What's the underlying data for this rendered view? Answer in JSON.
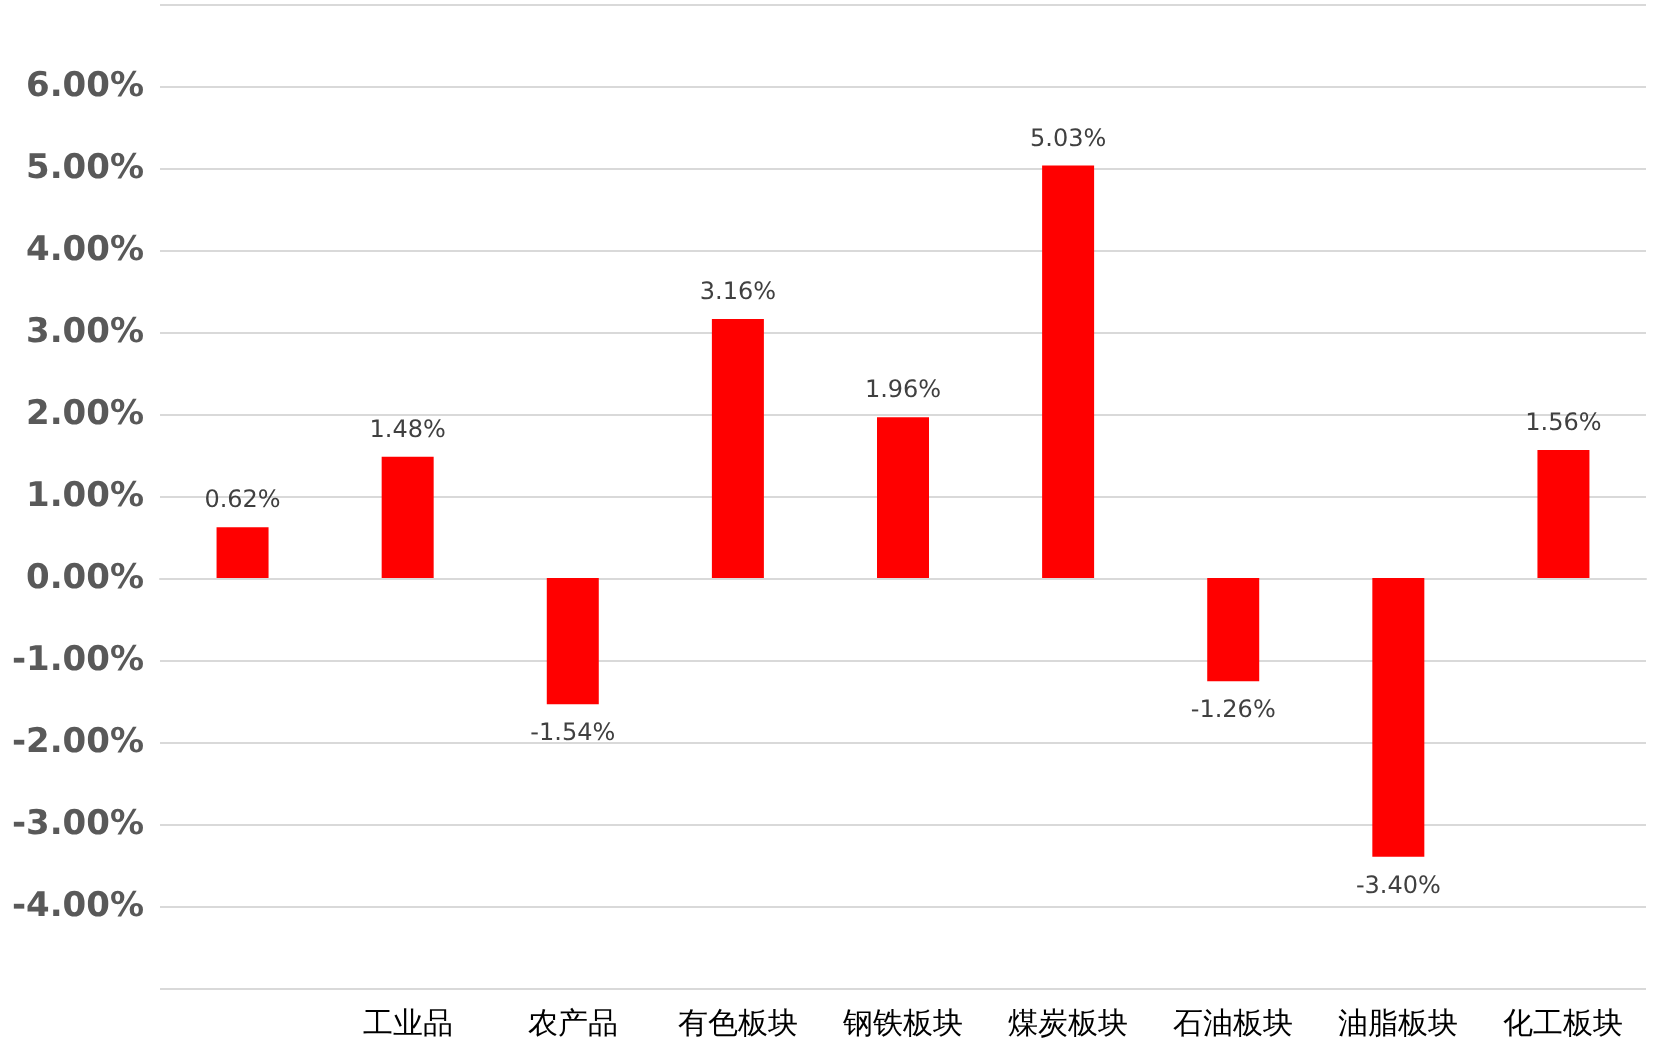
{
  "chart_data": {
    "type": "bar",
    "categories": [
      null,
      "工业品",
      "农产品",
      "有色板块",
      "钢铁板块",
      "煤炭板块",
      "石油板块",
      "油脂板块",
      "化工板块"
    ],
    "values": [
      0.62,
      1.48,
      -1.54,
      3.16,
      1.96,
      5.03,
      -1.26,
      -3.4,
      1.56
    ],
    "value_labels": [
      "0.62%",
      "1.48%",
      "-1.54%",
      "3.16%",
      "1.96%",
      "5.03%",
      "-1.26%",
      "-3.40%",
      "1.56%"
    ],
    "color": "#ff0000",
    "ylim": [
      -5,
      7
    ],
    "yticks": [
      {
        "value": -5,
        "label": null
      },
      {
        "value": -4,
        "label": "-4.00%"
      },
      {
        "value": -3,
        "label": "-3.00%"
      },
      {
        "value": -2,
        "label": "-2.00%"
      },
      {
        "value": -1,
        "label": "-1.00%"
      },
      {
        "value": 0,
        "label": "0.00%"
      },
      {
        "value": 1,
        "label": "1.00%"
      },
      {
        "value": 2,
        "label": "2.00%"
      },
      {
        "value": 3,
        "label": "3.00%"
      },
      {
        "value": 4,
        "label": "4.00%"
      },
      {
        "value": 5,
        "label": "5.00%"
      },
      {
        "value": 6,
        "label": "6.00%"
      },
      {
        "value": 7,
        "label": null
      }
    ],
    "grid": true
  }
}
